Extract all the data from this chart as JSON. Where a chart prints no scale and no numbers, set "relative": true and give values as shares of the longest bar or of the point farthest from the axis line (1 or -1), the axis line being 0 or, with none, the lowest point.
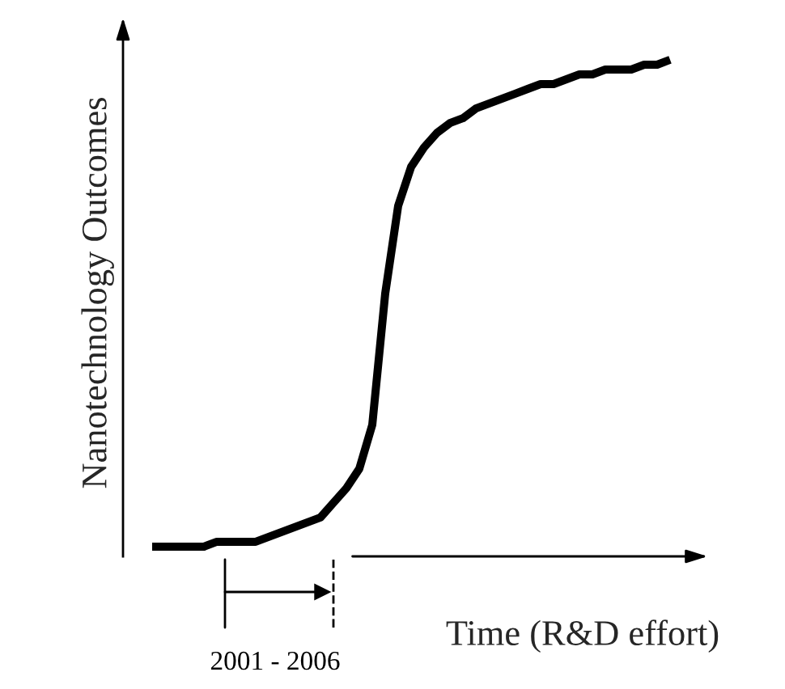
{
  "chart_data": {
    "type": "line",
    "relative": true,
    "xlabel": "Time (R&D effort)",
    "ylabel": "Nanotechnology Outcomes",
    "categories": [
      null,
      null,
      null,
      null,
      null,
      null,
      null,
      null,
      null,
      null,
      null,
      null,
      null,
      null,
      null,
      null,
      null,
      null,
      null,
      null,
      null,
      null,
      null,
      null,
      null,
      null,
      null,
      null,
      null,
      null,
      null,
      null,
      null,
      null,
      null,
      null,
      null,
      null,
      null,
      null,
      null
    ],
    "series": [
      {
        "color": "#000000",
        "values": [
          0,
          0,
          0,
          0.0,
          0.0,
          0.01,
          0.01,
          0.01,
          0.01,
          0.02,
          0.03,
          0.04,
          0.05,
          0.06,
          0.09,
          0.12,
          0.16,
          0.25,
          0.52,
          0.7,
          0.78,
          0.82,
          0.85,
          0.87,
          0.88,
          0.9,
          0.91,
          0.92,
          0.93,
          0.94,
          0.95,
          0.95,
          0.96,
          0.97,
          0.97,
          0.98,
          0.98,
          0.98,
          0.99,
          0.99,
          1
        ]
      }
    ],
    "annotations": [
      "2001 - 2006"
    ],
    "marker": "none",
    "line_style": "solid"
  }
}
